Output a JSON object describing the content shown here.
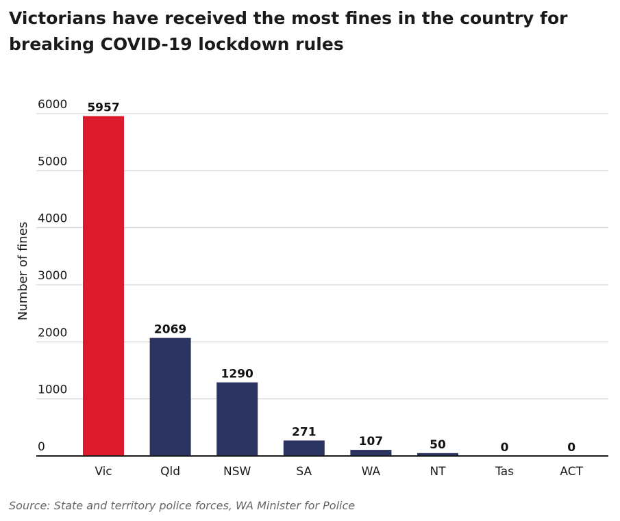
{
  "chart_data": {
    "type": "bar",
    "title": "Victorians have received the most fines in the country for breaking COVID-19 lockdown rules",
    "categories": [
      "Vic",
      "Qld",
      "NSW",
      "SA",
      "WA",
      "NT",
      "Tas",
      "ACT"
    ],
    "values": [
      5957,
      2069,
      1290,
      271,
      107,
      50,
      0,
      0
    ],
    "xlabel": "",
    "ylabel": "Number of fines",
    "ylim": [
      0,
      6000
    ],
    "yticks": [
      0,
      1000,
      2000,
      3000,
      4000,
      5000,
      6000
    ],
    "grid": true,
    "colors": {
      "highlight": "#dc1a2e",
      "default": "#2b345e",
      "grid": "#cccccc",
      "axis": "#1a1a1a"
    },
    "highlight_category": "Vic",
    "source": "Source: State and territory police forces, WA Minister for Police"
  }
}
